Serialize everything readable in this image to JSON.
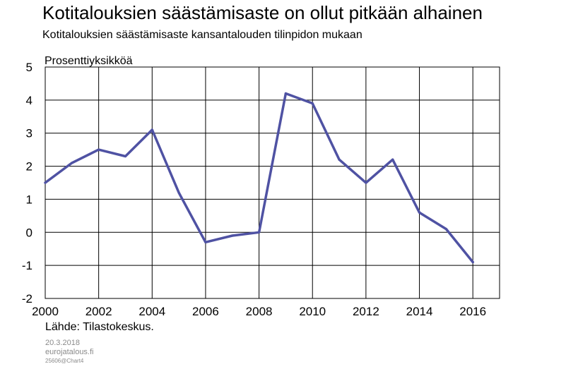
{
  "header": {
    "title": "Kotitalouksien säästämisaste on ollut pitkään alhainen",
    "subtitle": "Kotitalouksien säästämisaste kansantalouden tilinpidon mukaan"
  },
  "chart_data": {
    "type": "line",
    "title": "Kotitalouksien säästämisaste on ollut pitkään alhainen",
    "subtitle": "Kotitalouksien säästämisaste kansantalouden tilinpidon mukaan",
    "ylabel": "Prosenttiyksikköä",
    "xlabel": "",
    "xlim": [
      2000,
      2017
    ],
    "ylim": [
      -2,
      5
    ],
    "x_ticks": [
      2000,
      2002,
      2004,
      2006,
      2008,
      2010,
      2012,
      2014,
      2016
    ],
    "y_ticks": [
      5,
      4,
      3,
      2,
      1,
      0,
      -1,
      -2
    ],
    "grid": true,
    "legend": "none",
    "series": [
      {
        "color": "#4f52a3",
        "x": [
          2000,
          2001,
          2002,
          2003,
          2004,
          2005,
          2006,
          2007,
          2008,
          2009,
          2010,
          2011,
          2012,
          2013,
          2014,
          2015,
          2016
        ],
        "values": [
          1.5,
          2.1,
          2.5,
          2.3,
          3.1,
          1.2,
          -0.3,
          -0.1,
          0.0,
          4.2,
          3.9,
          2.2,
          1.5,
          2.2,
          0.6,
          0.1,
          -0.9
        ]
      }
    ]
  },
  "footer": {
    "source": "Lähde: Tilastokeskus.",
    "date": "20.3.2018",
    "site": "eurojatalous.fi",
    "code": "25606@Chart4"
  }
}
